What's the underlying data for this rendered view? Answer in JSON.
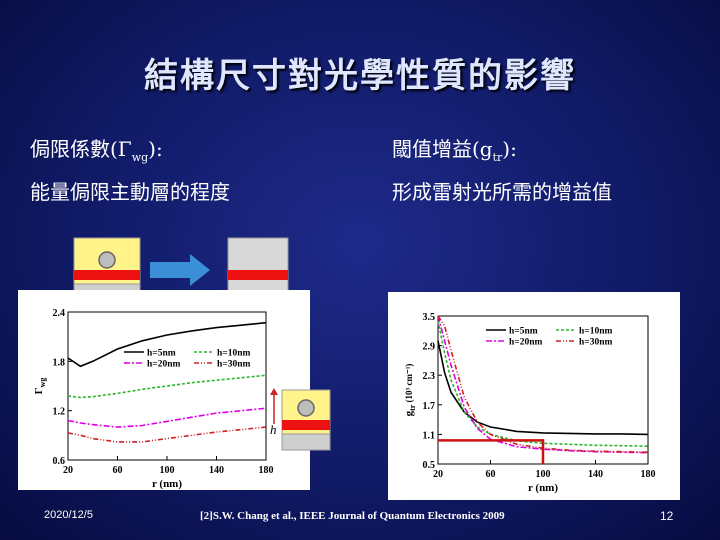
{
  "slide": {
    "title": "結構尺寸對光學性質的影響",
    "left_line1_prefix": "侷限係數(Γ",
    "left_line1_sub": "wg",
    "left_line1_suffix": "):",
    "left_line2": "能量侷限主動層的程度",
    "right_line1_prefix": "閾值增益(g",
    "right_line1_sub": "tr",
    "right_line1_suffix": "):",
    "right_line2": "形成雷射光所需的增益值",
    "date": "2020/12/5",
    "reference": "[2]S.W. Chang et al., IEEE Journal of Quantum Electronics 2009",
    "page_number": "12",
    "h_label": "h"
  },
  "colors": {
    "yellow": "#fff38a",
    "red": "#ee1111",
    "gray": "#c8c8c8",
    "arrow": "#3a8fd6"
  },
  "chart_data": [
    {
      "type": "line",
      "ylabel": "Γ",
      "ylabel_sub": "wg",
      "xlabel": "r (nm)",
      "xlim": [
        20,
        180
      ],
      "ylim": [
        0.6,
        2.4
      ],
      "xticks": [
        "20",
        "60",
        "100",
        "140",
        "180"
      ],
      "yticks": [
        "0.6",
        "1.2",
        "1.8",
        "2.4"
      ],
      "x": [
        20,
        30,
        40,
        60,
        80,
        100,
        120,
        140,
        160,
        180
      ],
      "series": [
        {
          "name": "h=5nm",
          "color": "#000000",
          "dash": "",
          "values": [
            1.84,
            1.74,
            1.8,
            1.95,
            2.05,
            2.12,
            2.17,
            2.21,
            2.24,
            2.27
          ]
        },
        {
          "name": "h=10nm",
          "color": "#2ab52a",
          "dash": "3,2",
          "values": [
            1.38,
            1.36,
            1.37,
            1.41,
            1.46,
            1.5,
            1.54,
            1.57,
            1.6,
            1.63
          ]
        },
        {
          "name": "h=20nm",
          "color": "#e000e0",
          "dash": "6,2,2,2",
          "values": [
            1.08,
            1.05,
            1.03,
            1.0,
            1.02,
            1.07,
            1.12,
            1.17,
            1.2,
            1.23
          ]
        },
        {
          "name": "h=30nm",
          "color": "#cc2222",
          "dash": "5,2,1,2,1,2",
          "values": [
            0.93,
            0.9,
            0.86,
            0.82,
            0.82,
            0.86,
            0.9,
            0.94,
            0.97,
            1.0
          ]
        }
      ]
    },
    {
      "type": "line",
      "ylabel": "g",
      "ylabel_sub": "tr",
      "ylabel_suffix": " (10³ cm⁻¹)",
      "xlabel": "r (nm)",
      "xlim": [
        20,
        180
      ],
      "ylim": [
        0.5,
        3.5
      ],
      "xticks": [
        "20",
        "60",
        "100",
        "140",
        "180"
      ],
      "yticks": [
        "0.5",
        "1.1",
        "1.7",
        "2.3",
        "2.9",
        "3.5"
      ],
      "x": [
        20,
        25,
        30,
        40,
        50,
        60,
        80,
        100,
        120,
        140,
        160,
        180
      ],
      "series": [
        {
          "name": "h=5nm",
          "color": "#000000",
          "dash": "",
          "values": [
            3.0,
            2.35,
            1.95,
            1.55,
            1.35,
            1.25,
            1.16,
            1.13,
            1.12,
            1.11,
            1.11,
            1.1
          ]
        },
        {
          "name": "h=10nm",
          "color": "#2ab52a",
          "dash": "3,2",
          "values": [
            3.4,
            2.75,
            2.2,
            1.55,
            1.25,
            1.1,
            0.97,
            0.92,
            0.9,
            0.88,
            0.87,
            0.86
          ]
        },
        {
          "name": "h=20nm",
          "color": "#e000e0",
          "dash": "6,2,2,2",
          "values": [
            3.5,
            3.0,
            2.5,
            1.65,
            1.22,
            1.0,
            0.85,
            0.8,
            0.77,
            0.75,
            0.74,
            0.73
          ]
        },
        {
          "name": "h=30nm",
          "color": "#cc2222",
          "dash": "5,2,1,2,1,2",
          "values": [
            3.5,
            3.3,
            2.8,
            1.85,
            1.35,
            1.1,
            0.9,
            0.82,
            0.78,
            0.76,
            0.75,
            0.74
          ]
        }
      ],
      "highlight": {
        "x": 100,
        "y": 0.98
      }
    }
  ]
}
